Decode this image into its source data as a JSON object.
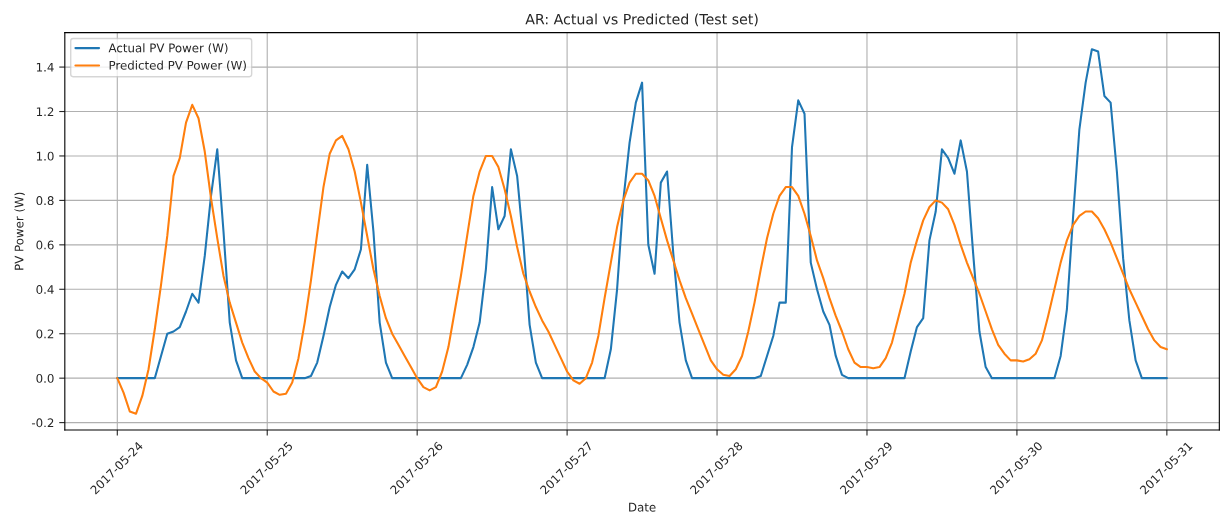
{
  "chart_data": {
    "type": "line",
    "title": "AR: Actual vs Predicted (Test set)",
    "xlabel": "Date",
    "ylabel": "PV Power (W)",
    "xlim": [
      "2017-05-23T15:36",
      "2017-05-31T08:24"
    ],
    "xticks": [
      "2017-05-24",
      "2017-05-25",
      "2017-05-26",
      "2017-05-27",
      "2017-05-28",
      "2017-05-29",
      "2017-05-30",
      "2017-05-31"
    ],
    "ylim": [
      -0.233,
      1.555
    ],
    "yticks": [
      -0.2,
      {
        "value": 0,
        "label": "0.0"
      },
      0.2,
      0.4,
      0.6,
      0.8,
      {
        "value": 1,
        "label": "1.0"
      },
      1.2,
      1.4
    ],
    "grid": true,
    "legend": "top left",
    "marker": "none",
    "line_style": "solid",
    "series": [
      {
        "name": "Actual PV Power (W)",
        "color": "#1f77b4",
        "x": [
          "2017-05-24T00:00",
          "2017-05-24T06:00",
          "2017-05-24T07:00",
          "2017-05-24T08:00",
          "2017-05-24T09:00",
          "2017-05-24T10:00",
          "2017-05-24T11:00",
          "2017-05-24T12:00",
          "2017-05-24T13:00",
          "2017-05-24T14:00",
          "2017-05-24T15:00",
          "2017-05-24T16:00",
          "2017-05-24T17:00",
          "2017-05-24T18:00",
          "2017-05-24T19:00",
          "2017-05-24T20:00",
          "2017-05-25T06:00",
          "2017-05-25T07:00",
          "2017-05-25T08:00",
          "2017-05-25T09:00",
          "2017-05-25T10:00",
          "2017-05-25T11:00",
          "2017-05-25T12:00",
          "2017-05-25T13:00",
          "2017-05-25T14:00",
          "2017-05-25T15:00",
          "2017-05-25T16:00",
          "2017-05-25T17:00",
          "2017-05-25T18:00",
          "2017-05-25T19:00",
          "2017-05-25T20:00",
          "2017-05-26T07:00",
          "2017-05-26T08:00",
          "2017-05-26T09:00",
          "2017-05-26T10:00",
          "2017-05-26T11:00",
          "2017-05-26T12:00",
          "2017-05-26T13:00",
          "2017-05-26T14:00",
          "2017-05-26T15:00",
          "2017-05-26T16:00",
          "2017-05-26T17:00",
          "2017-05-26T18:00",
          "2017-05-26T19:00",
          "2017-05-26T20:00",
          "2017-05-27T06:00",
          "2017-05-27T07:00",
          "2017-05-27T08:00",
          "2017-05-27T09:00",
          "2017-05-27T10:00",
          "2017-05-27T11:00",
          "2017-05-27T12:00",
          "2017-05-27T13:00",
          "2017-05-27T14:00",
          "2017-05-27T15:00",
          "2017-05-27T16:00",
          "2017-05-27T17:00",
          "2017-05-27T18:00",
          "2017-05-27T19:00",
          "2017-05-27T20:00",
          "2017-05-28T06:00",
          "2017-05-28T07:00",
          "2017-05-28T08:00",
          "2017-05-28T09:00",
          "2017-05-28T10:00",
          "2017-05-28T11:00",
          "2017-05-28T12:00",
          "2017-05-28T13:00",
          "2017-05-28T14:00",
          "2017-05-28T15:00",
          "2017-05-28T16:00",
          "2017-05-28T17:00",
          "2017-05-28T18:00",
          "2017-05-28T19:00",
          "2017-05-28T20:00",
          "2017-05-28T21:00",
          "2017-05-29T06:00",
          "2017-05-29T07:00",
          "2017-05-29T08:00",
          "2017-05-29T09:00",
          "2017-05-29T10:00",
          "2017-05-29T11:00",
          "2017-05-29T12:00",
          "2017-05-29T13:00",
          "2017-05-29T14:00",
          "2017-05-29T15:00",
          "2017-05-29T16:00",
          "2017-05-29T17:00",
          "2017-05-29T18:00",
          "2017-05-29T19:00",
          "2017-05-29T20:00",
          "2017-05-30T06:00",
          "2017-05-30T07:00",
          "2017-05-30T08:00",
          "2017-05-30T09:00",
          "2017-05-30T10:00",
          "2017-05-30T11:00",
          "2017-05-30T12:00",
          "2017-05-30T13:00",
          "2017-05-30T14:00",
          "2017-05-30T15:00",
          "2017-05-30T16:00",
          "2017-05-30T17:00",
          "2017-05-30T18:00",
          "2017-05-30T19:00",
          "2017-05-30T20:00",
          "2017-05-31T00:00"
        ],
        "values": [
          0,
          0,
          0.1,
          0.2,
          0.21,
          0.23,
          0.3,
          0.38,
          0.34,
          0.55,
          0.82,
          1.03,
          0.66,
          0.25,
          0.08,
          0,
          0,
          0.01,
          0.07,
          0.19,
          0.32,
          0.42,
          0.48,
          0.45,
          0.49,
          0.58,
          0.96,
          0.66,
          0.25,
          0.07,
          0,
          0,
          0.06,
          0.14,
          0.25,
          0.49,
          0.86,
          0.67,
          0.73,
          1.03,
          0.91,
          0.61,
          0.24,
          0.07,
          0,
          0,
          0.13,
          0.4,
          0.8,
          1.06,
          1.24,
          1.33,
          0.6,
          0.47,
          0.88,
          0.93,
          0.56,
          0.25,
          0.08,
          0,
          0,
          0.01,
          0.1,
          0.19,
          0.34,
          0.34,
          1.04,
          1.25,
          1.19,
          0.52,
          0.4,
          0.3,
          0.24,
          0.1,
          0.015,
          0,
          0,
          0.12,
          0.23,
          0.27,
          0.62,
          0.75,
          1.03,
          0.99,
          0.92,
          1.07,
          0.93,
          0.56,
          0.21,
          0.05,
          0,
          0,
          0.1,
          0.31,
          0.73,
          1.12,
          1.33,
          1.48,
          1.47,
          1.27,
          1.24,
          0.93,
          0.54,
          0.26,
          0.08,
          0,
          0
        ]
      },
      {
        "name": "Predicted PV Power (W)",
        "color": "#ff7f0e",
        "x": [
          "2017-05-24T00:00",
          "2017-05-24T01:00",
          "2017-05-24T02:00",
          "2017-05-24T03:00",
          "2017-05-24T04:00",
          "2017-05-24T05:00",
          "2017-05-24T06:00",
          "2017-05-24T07:00",
          "2017-05-24T08:00",
          "2017-05-24T09:00",
          "2017-05-24T10:00",
          "2017-05-24T11:00",
          "2017-05-24T12:00",
          "2017-05-24T13:00",
          "2017-05-24T14:00",
          "2017-05-24T15:00",
          "2017-05-24T16:00",
          "2017-05-24T17:00",
          "2017-05-24T18:00",
          "2017-05-24T19:00",
          "2017-05-24T20:00",
          "2017-05-24T21:00",
          "2017-05-24T22:00",
          "2017-05-24T23:00",
          "2017-05-25T00:00",
          "2017-05-25T01:00",
          "2017-05-25T02:00",
          "2017-05-25T03:00",
          "2017-05-25T04:00",
          "2017-05-25T05:00",
          "2017-05-25T06:00",
          "2017-05-25T07:00",
          "2017-05-25T08:00",
          "2017-05-25T09:00",
          "2017-05-25T10:00",
          "2017-05-25T11:00",
          "2017-05-25T12:00",
          "2017-05-25T13:00",
          "2017-05-25T14:00",
          "2017-05-25T15:00",
          "2017-05-25T16:00",
          "2017-05-25T17:00",
          "2017-05-25T18:00",
          "2017-05-25T19:00",
          "2017-05-25T20:00",
          "2017-05-25T21:00",
          "2017-05-25T22:00",
          "2017-05-25T23:00",
          "2017-05-26T00:00",
          "2017-05-26T01:00",
          "2017-05-26T02:00",
          "2017-05-26T03:00",
          "2017-05-26T04:00",
          "2017-05-26T05:00",
          "2017-05-26T06:00",
          "2017-05-26T07:00",
          "2017-05-26T08:00",
          "2017-05-26T09:00",
          "2017-05-26T10:00",
          "2017-05-26T11:00",
          "2017-05-26T12:00",
          "2017-05-26T13:00",
          "2017-05-26T14:00",
          "2017-05-26T15:00",
          "2017-05-26T16:00",
          "2017-05-26T17:00",
          "2017-05-26T18:00",
          "2017-05-26T19:00",
          "2017-05-26T20:00",
          "2017-05-26T21:00",
          "2017-05-26T22:00",
          "2017-05-26T23:00",
          "2017-05-27T00:00",
          "2017-05-27T01:00",
          "2017-05-27T02:00",
          "2017-05-27T03:00",
          "2017-05-27T04:00",
          "2017-05-27T05:00",
          "2017-05-27T06:00",
          "2017-05-27T07:00",
          "2017-05-27T08:00",
          "2017-05-27T09:00",
          "2017-05-27T10:00",
          "2017-05-27T11:00",
          "2017-05-27T12:00",
          "2017-05-27T13:00",
          "2017-05-27T14:00",
          "2017-05-27T15:00",
          "2017-05-27T16:00",
          "2017-05-27T17:00",
          "2017-05-27T18:00",
          "2017-05-27T19:00",
          "2017-05-27T20:00",
          "2017-05-27T21:00",
          "2017-05-27T22:00",
          "2017-05-27T23:00",
          "2017-05-28T00:00",
          "2017-05-28T01:00",
          "2017-05-28T02:00",
          "2017-05-28T03:00",
          "2017-05-28T04:00",
          "2017-05-28T05:00",
          "2017-05-28T06:00",
          "2017-05-28T07:00",
          "2017-05-28T08:00",
          "2017-05-28T09:00",
          "2017-05-28T10:00",
          "2017-05-28T11:00",
          "2017-05-28T12:00",
          "2017-05-28T13:00",
          "2017-05-28T14:00",
          "2017-05-28T15:00",
          "2017-05-28T16:00",
          "2017-05-28T17:00",
          "2017-05-28T18:00",
          "2017-05-28T19:00",
          "2017-05-28T20:00",
          "2017-05-28T21:00",
          "2017-05-28T22:00",
          "2017-05-28T23:00",
          "2017-05-29T00:00",
          "2017-05-29T01:00",
          "2017-05-29T02:00",
          "2017-05-29T03:00",
          "2017-05-29T04:00",
          "2017-05-29T05:00",
          "2017-05-29T06:00",
          "2017-05-29T07:00",
          "2017-05-29T08:00",
          "2017-05-29T09:00",
          "2017-05-29T10:00",
          "2017-05-29T11:00",
          "2017-05-29T12:00",
          "2017-05-29T13:00",
          "2017-05-29T14:00",
          "2017-05-29T15:00",
          "2017-05-29T16:00",
          "2017-05-29T17:00",
          "2017-05-29T18:00",
          "2017-05-29T19:00",
          "2017-05-29T20:00",
          "2017-05-29T21:00",
          "2017-05-29T22:00",
          "2017-05-29T23:00",
          "2017-05-30T00:00",
          "2017-05-30T01:00",
          "2017-05-30T02:00",
          "2017-05-30T03:00",
          "2017-05-30T04:00",
          "2017-05-30T05:00",
          "2017-05-30T06:00",
          "2017-05-30T07:00",
          "2017-05-30T08:00",
          "2017-05-30T09:00",
          "2017-05-30T10:00",
          "2017-05-30T11:00",
          "2017-05-30T12:00",
          "2017-05-30T13:00",
          "2017-05-30T14:00",
          "2017-05-30T15:00",
          "2017-05-30T16:00",
          "2017-05-30T17:00",
          "2017-05-30T18:00",
          "2017-05-30T19:00",
          "2017-05-30T20:00",
          "2017-05-30T21:00",
          "2017-05-30T22:00",
          "2017-05-30T23:00",
          "2017-05-31T00:00"
        ],
        "values": [
          0,
          -0.065,
          -0.15,
          -0.16,
          -0.08,
          0.04,
          0.22,
          0.42,
          0.64,
          0.91,
          0.99,
          1.15,
          1.23,
          1.17,
          1.02,
          0.81,
          0.63,
          0.46,
          0.34,
          0.25,
          0.16,
          0.09,
          0.03,
          0.0,
          -0.02,
          -0.06,
          -0.075,
          -0.07,
          -0.02,
          0.09,
          0.25,
          0.44,
          0.65,
          0.86,
          1.01,
          1.07,
          1.09,
          1.03,
          0.93,
          0.79,
          0.64,
          0.49,
          0.37,
          0.27,
          0.2,
          0.15,
          0.1,
          0.05,
          0.0,
          -0.04,
          -0.055,
          -0.04,
          0.03,
          0.14,
          0.3,
          0.46,
          0.64,
          0.82,
          0.93,
          1.0,
          1.0,
          0.95,
          0.85,
          0.73,
          0.59,
          0.47,
          0.39,
          0.32,
          0.26,
          0.21,
          0.15,
          0.09,
          0.03,
          -0.01,
          -0.025,
          0.0,
          0.07,
          0.19,
          0.36,
          0.52,
          0.68,
          0.8,
          0.88,
          0.92,
          0.92,
          0.89,
          0.82,
          0.72,
          0.62,
          0.53,
          0.44,
          0.36,
          0.29,
          0.22,
          0.15,
          0.08,
          0.04,
          0.015,
          0.01,
          0.04,
          0.1,
          0.21,
          0.34,
          0.49,
          0.63,
          0.74,
          0.82,
          0.86,
          0.86,
          0.82,
          0.74,
          0.64,
          0.53,
          0.45,
          0.36,
          0.28,
          0.21,
          0.13,
          0.07,
          0.05,
          0.05,
          0.045,
          0.05,
          0.09,
          0.16,
          0.27,
          0.38,
          0.52,
          0.62,
          0.71,
          0.77,
          0.8,
          0.79,
          0.76,
          0.69,
          0.6,
          0.52,
          0.45,
          0.38,
          0.3,
          0.22,
          0.15,
          0.11,
          0.08,
          0.08,
          0.075,
          0.085,
          0.11,
          0.17,
          0.28,
          0.4,
          0.52,
          0.62,
          0.69,
          0.73,
          0.75,
          0.75,
          0.72,
          0.67,
          0.61,
          0.54,
          0.47,
          0.4,
          0.34,
          0.28,
          0.22,
          0.17,
          0.14,
          0.13
        ]
      }
    ]
  }
}
